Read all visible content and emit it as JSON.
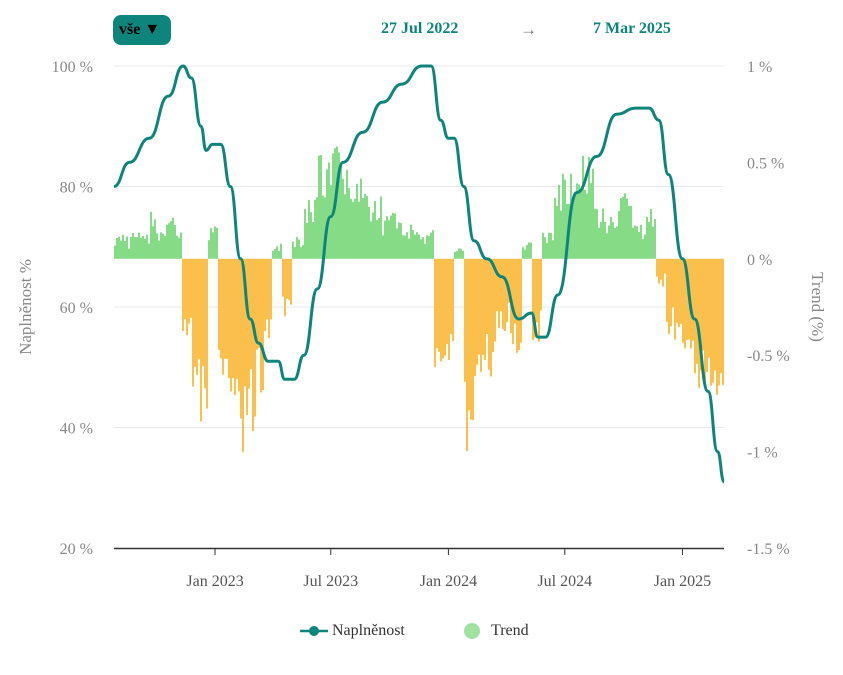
{
  "controls": {
    "range_label": "vše ▼",
    "date_from": "27 Jul 2022",
    "arrow": "→",
    "date_to": "7 Mar 2025"
  },
  "colors": {
    "line": "#0e857c",
    "positive": "#86dc86",
    "negative": "#fbbf4c",
    "grid": "#e8e8e8",
    "axis": "#333333",
    "tick": "#888888"
  },
  "chart_data": {
    "type": "line",
    "x_start": "2022-07-27",
    "x_end": "2025-03-07",
    "y_left": {
      "label": "Naplněnost %",
      "range": [
        20,
        100
      ],
      "ticks": [
        "20 %",
        "40 %",
        "60 %",
        "80 %",
        "100 %"
      ]
    },
    "y_right": {
      "label": "Trend (%)",
      "range": [
        -1.5,
        1
      ],
      "ticks": [
        "-1.5 %",
        "-1 %",
        "-0.5 %",
        "0 %",
        "0.5 %",
        "1 %"
      ]
    },
    "x_ticks": [
      "Jan 2023",
      "Jul 2023",
      "Jan 2024",
      "Jul 2024",
      "Jan 2025"
    ],
    "grid": true,
    "legend_position": "bottom",
    "series": [
      {
        "name": "Naplněnost",
        "axis": "left",
        "points": [
          [
            "2022-07-27",
            80
          ],
          [
            "2022-08-20",
            84
          ],
          [
            "2022-09-20",
            88
          ],
          [
            "2022-10-20",
            95
          ],
          [
            "2022-11-12",
            100
          ],
          [
            "2022-11-25",
            98
          ],
          [
            "2022-12-10",
            90
          ],
          [
            "2022-12-18",
            86
          ],
          [
            "2022-12-28",
            87
          ],
          [
            "2023-01-10",
            87
          ],
          [
            "2023-01-25",
            80
          ],
          [
            "2023-02-10",
            68
          ],
          [
            "2023-02-25",
            58
          ],
          [
            "2023-03-10",
            54
          ],
          [
            "2023-03-25",
            51
          ],
          [
            "2023-04-10",
            51
          ],
          [
            "2023-04-20",
            48
          ],
          [
            "2023-05-05",
            48
          ],
          [
            "2023-05-20",
            52
          ],
          [
            "2023-06-10",
            63
          ],
          [
            "2023-07-01",
            75
          ],
          [
            "2023-07-20",
            84
          ],
          [
            "2023-08-20",
            89
          ],
          [
            "2023-09-20",
            94
          ],
          [
            "2023-10-20",
            97
          ],
          [
            "2023-11-20",
            100
          ],
          [
            "2023-12-05",
            100
          ],
          [
            "2023-12-20",
            91
          ],
          [
            "2024-01-01",
            88
          ],
          [
            "2024-01-10",
            88
          ],
          [
            "2024-01-25",
            80
          ],
          [
            "2024-02-10",
            71
          ],
          [
            "2024-03-01",
            68
          ],
          [
            "2024-03-25",
            65
          ],
          [
            "2024-04-20",
            58
          ],
          [
            "2024-05-10",
            59
          ],
          [
            "2024-05-20",
            55
          ],
          [
            "2024-06-01",
            55
          ],
          [
            "2024-06-20",
            62
          ],
          [
            "2024-07-20",
            79
          ],
          [
            "2024-08-20",
            85
          ],
          [
            "2024-09-20",
            92
          ],
          [
            "2024-10-20",
            93
          ],
          [
            "2024-11-10",
            93
          ],
          [
            "2024-11-25",
            91
          ],
          [
            "2024-12-10",
            82
          ],
          [
            "2025-01-01",
            68
          ],
          [
            "2025-01-20",
            58
          ],
          [
            "2025-02-10",
            46
          ],
          [
            "2025-02-25",
            36
          ],
          [
            "2025-03-07",
            31
          ]
        ]
      },
      {
        "name": "Trend",
        "axis": "right",
        "style": "bars",
        "periods": [
          [
            "2022-07-27",
            0.13,
            0.03
          ],
          [
            "2022-08-20",
            0.15,
            0.03
          ],
          [
            "2022-09-20",
            0.26,
            0.03
          ],
          [
            "2022-10-20",
            0.3,
            0.03
          ],
          [
            "2022-11-10",
            -0.3,
            -0.55
          ],
          [
            "2022-11-25",
            -0.7,
            -0.4
          ],
          [
            "2022-12-10",
            -0.9,
            -0.4
          ],
          [
            "2022-12-22",
            0.18,
            0.05
          ],
          [
            "2023-01-05",
            -0.75,
            -0.35
          ],
          [
            "2023-01-20",
            -0.95,
            -0.45
          ],
          [
            "2023-02-05",
            -1.05,
            -0.5
          ],
          [
            "2023-02-20",
            -0.9,
            -0.45
          ],
          [
            "2023-03-05",
            -0.75,
            -0.35
          ],
          [
            "2023-03-20",
            -0.55,
            -0.25
          ],
          [
            "2023-04-01",
            0.08,
            0.03
          ],
          [
            "2023-04-15",
            -0.35,
            -0.15
          ],
          [
            "2023-05-01",
            0.12,
            0.04
          ],
          [
            "2023-05-20",
            0.35,
            0.12
          ],
          [
            "2023-06-10",
            0.63,
            0.2
          ],
          [
            "2023-07-01",
            0.65,
            0.25
          ],
          [
            "2023-07-20",
            0.5,
            0.2
          ],
          [
            "2023-08-20",
            0.35,
            0.12
          ],
          [
            "2023-09-20",
            0.25,
            0.08
          ],
          [
            "2023-10-20",
            0.18,
            0.06
          ],
          [
            "2023-11-20",
            0.15,
            0.05
          ],
          [
            "2023-12-10",
            -0.6,
            -0.3
          ],
          [
            "2023-12-25",
            -0.55,
            -0.25
          ],
          [
            "2024-01-10",
            0.06,
            0.02
          ],
          [
            "2024-01-25",
            -1.0,
            -0.5
          ],
          [
            "2024-02-10",
            -0.7,
            -0.35
          ],
          [
            "2024-02-25",
            -0.65,
            -0.3
          ],
          [
            "2024-03-15",
            -0.4,
            -0.15
          ],
          [
            "2024-04-05",
            -0.5,
            -0.25
          ],
          [
            "2024-04-25",
            0.1,
            0.03
          ],
          [
            "2024-05-10",
            -0.45,
            -0.2
          ],
          [
            "2024-05-25",
            0.15,
            0.05
          ],
          [
            "2024-06-15",
            0.45,
            0.18
          ],
          [
            "2024-07-05",
            0.5,
            0.22
          ],
          [
            "2024-07-25",
            0.58,
            0.25
          ],
          [
            "2024-08-15",
            0.3,
            0.12
          ],
          [
            "2024-09-05",
            0.25,
            0.1
          ],
          [
            "2024-09-25",
            0.35,
            0.1
          ],
          [
            "2024-10-15",
            0.18,
            0.06
          ],
          [
            "2024-11-05",
            0.28,
            0.1
          ],
          [
            "2024-11-20",
            -0.15,
            -0.05
          ],
          [
            "2024-12-05",
            -0.4,
            -0.15
          ],
          [
            "2024-12-20",
            -0.5,
            -0.25
          ],
          [
            "2025-01-05",
            -0.6,
            -0.35
          ],
          [
            "2025-01-20",
            -0.7,
            -0.4
          ],
          [
            "2025-02-05",
            -0.7,
            -0.4
          ],
          [
            "2025-02-20",
            -0.75,
            -0.45
          ],
          [
            "2025-03-07",
            -0.55,
            -0.35
          ]
        ]
      }
    ]
  },
  "legend": {
    "line_label": "Naplněnost",
    "trend_label": "Trend"
  }
}
